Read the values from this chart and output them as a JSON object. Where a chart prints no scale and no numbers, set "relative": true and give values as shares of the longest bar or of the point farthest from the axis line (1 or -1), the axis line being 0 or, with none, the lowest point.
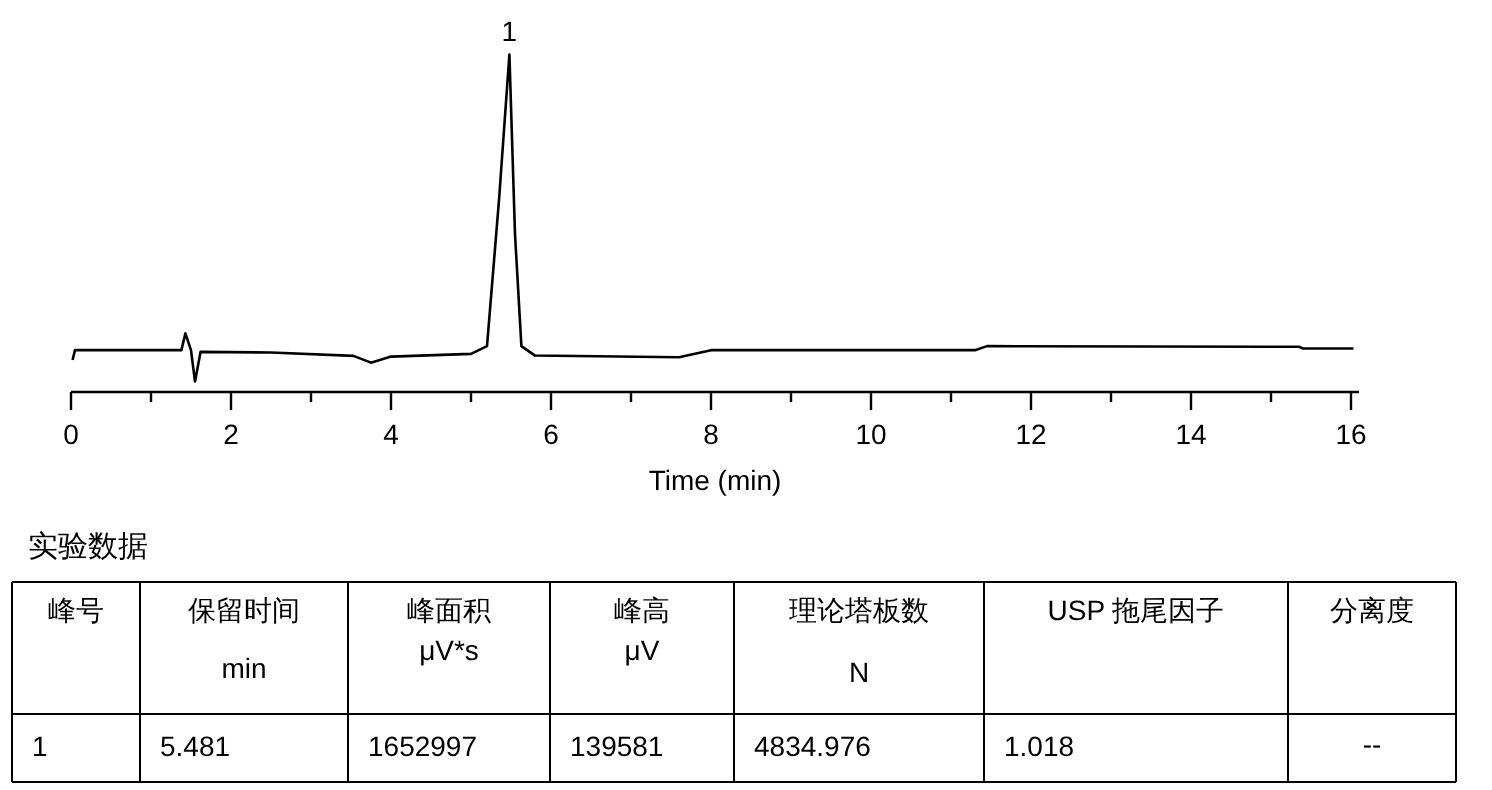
{
  "chart_data": {
    "type": "line",
    "relative": true,
    "xlabel": "Time (min)",
    "xlim": [
      0,
      16.1
    ],
    "xticks": [
      0,
      {
        "value": 1,
        "label": null
      },
      2,
      {
        "value": 3,
        "label": null
      },
      4,
      {
        "value": 5,
        "label": null
      },
      6,
      {
        "value": 7,
        "label": null
      },
      8,
      {
        "value": 9,
        "label": null
      },
      10,
      {
        "value": 11,
        "label": null
      },
      12,
      {
        "value": 13,
        "label": null
      },
      14,
      {
        "value": 15,
        "label": null
      },
      16
    ],
    "series": [
      {
        "color": "#000000",
        "x": [
          0.02,
          0.05,
          1.38,
          1.43,
          1.5,
          1.55,
          1.62,
          2.5,
          3.53,
          3.75,
          4.0,
          5.0,
          5.2,
          5.35,
          5.48,
          5.55,
          5.63,
          5.8,
          7.6,
          8.0,
          11.3,
          11.45,
          15.35,
          15.4,
          16.03
        ],
        "values": [
          0.095,
          0.124,
          0.124,
          0.174,
          0.124,
          0.031,
          0.119,
          0.117,
          0.107,
          0.087,
          0.105,
          0.113,
          0.136,
          0.569,
          1.0,
          0.468,
          0.136,
          0.108,
          0.103,
          0.124,
          0.124,
          0.136,
          0.134,
          0.129,
          0.129
        ]
      }
    ],
    "annotations": [
      {
        "text": "1",
        "x": 5.48,
        "y": 1.0
      },
      "实验数据",
      "峰号",
      "保留时间",
      "峰面积",
      "峰高",
      "理论塔板数",
      "USP 拖尾因子",
      "分离度",
      "min",
      "μV*s",
      "μV",
      "N",
      "1",
      "5.481",
      "1652997",
      "139581",
      "4834.976",
      "1.018",
      "--"
    ]
  }
}
